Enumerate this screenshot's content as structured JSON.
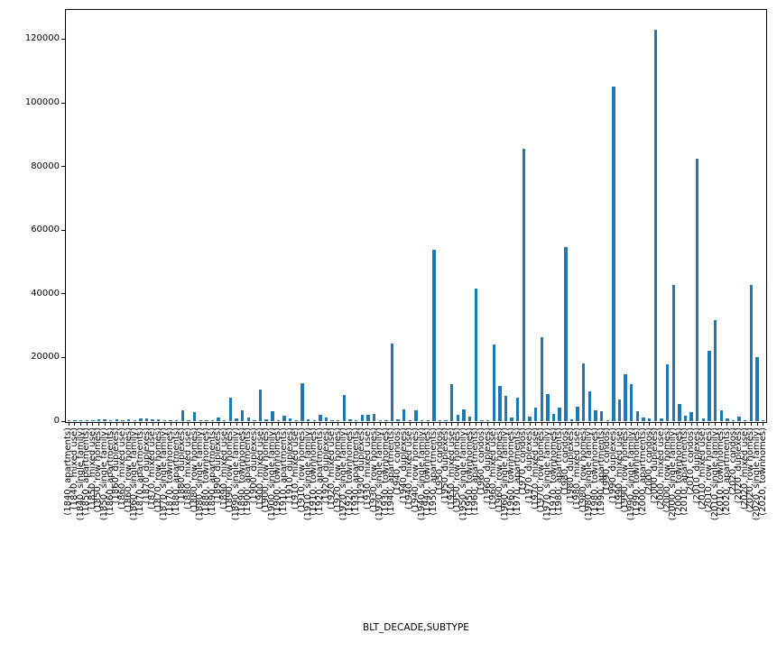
{
  "figure": {
    "background": "#ffffff",
    "axis_color": "#000000",
    "bar_color": "#1f77b4"
  },
  "chart_data": {
    "type": "bar",
    "title": "",
    "xlabel": "BLT_DECADE,SUBTYPE",
    "ylabel": "",
    "ylim": [
      0,
      129300
    ],
    "y_ticks": [
      0,
      20000,
      40000,
      60000,
      80000,
      100000,
      120000
    ],
    "grid": false,
    "legend": "none",
    "categories": [
      "(1840, apartments)",
      "(1840, mixed use)",
      "(1840, single family)",
      "(1850, apartments)",
      "(1850, mixed use)",
      "(1850, row homes)",
      "(1850, single family)",
      "(1860, apartments)",
      "(1860, duplexes)",
      "(1860, mixed use)",
      "(1860, row homes)",
      "(1860, single family)",
      "(1870, apartments)",
      "(1870, duplexes)",
      "(1870, mixed use)",
      "(1870, row homes)",
      "(1870, single family)",
      "(1870, townhomes)",
      "(1880, apartments)",
      "(1880, duplexes)",
      "(1880, mixed use)",
      "(1880, row homes)",
      "(1880, single family)",
      "(1880, townhomes)",
      "(1890, apartments)",
      "(1890, duplexes)",
      "(1890, mixed use)",
      "(1890, row homes)",
      "(1890, single family)",
      "(1890, townhomes)",
      "(1900, apartments)",
      "(1900, duplexes)",
      "(1900, mixed use)",
      "(1900, row homes)",
      "(1900, single family)",
      "(1900, townhomes)",
      "(1910, apartments)",
      "(1910, duplexes)",
      "(1910, mixed use)",
      "(1910, row homes)",
      "(1910, single family)",
      "(1910, townhomes)",
      "(1920, apartments)",
      "(1920, duplexes)",
      "(1920, mixed use)",
      "(1920, row homes)",
      "(1920, single family)",
      "(1920, townhomes)",
      "(1930, apartments)",
      "(1930, duplexes)",
      "(1930, mixed use)",
      "(1930, row homes)",
      "(1930, single family)",
      "(1930, townhomes)",
      "(1940, apartments)",
      "(1940, condos)",
      "(1940, duplexes)",
      "(1940, mixed use)",
      "(1940, row homes)",
      "(1940, single family)",
      "(1940, townhomes)",
      "(1950, apartments)",
      "(1950, condos)",
      "(1950, duplexes)",
      "(1950, mixed use)",
      "(1950, row homes)",
      "(1950, single family)",
      "(1950, townhomes)",
      "(1960, apartments)",
      "(1960, condos)",
      "(1960, duplexes)",
      "(1960, mixed use)",
      "(1960, row homes)",
      "(1960, single family)",
      "(1960, townhomes)",
      "(1970, apartments)",
      "(1970, condos)",
      "(1970, duplexes)",
      "(1970, mixed use)",
      "(1970, row homes)",
      "(1970, single family)",
      "(1970, townhomes)",
      "(1980, apartments)",
      "(1980, condos)",
      "(1980, duplexes)",
      "(1980, mixed use)",
      "(1980, row homes)",
      "(1980, single family)",
      "(1980, townhomes)",
      "(1990, apartments)",
      "(1990, condos)",
      "(1990, duplexes)",
      "(1990, mixed use)",
      "(1990, row homes)",
      "(1990, single family)",
      "(1990, townhomes)",
      "(2000, apartments)",
      "(2000, condos)",
      "(2000, duplexes)",
      "(2000, mixed use)",
      "(2000, row homes)",
      "(2000, single family)",
      "(2000, townhomes)",
      "(2010, apartments)",
      "(2010, condos)",
      "(2010, duplexes)",
      "(2010, mixed use)",
      "(2010, row homes)",
      "(2010, single family)",
      "(2010, townhomes)",
      "(2020, apartments)",
      "(2020, condos)",
      "(2020, duplexes)",
      "(2020, mixed use)",
      "(2020, row homes)",
      "(2020, single family)",
      "(2020, townhomes)"
    ],
    "values": [
      150,
      60,
      40,
      90,
      70,
      480,
      570,
      120,
      480,
      150,
      480,
      120,
      950,
      860,
      670,
      480,
      150,
      100,
      120,
      3340,
      200,
      2860,
      150,
      100,
      120,
      1150,
      200,
      7440,
      760,
      3340,
      1100,
      150,
      10000,
      500,
      3000,
      200,
      1600,
      800,
      380,
      12000,
      570,
      150,
      2100,
      1150,
      200,
      150,
      8100,
      480,
      120,
      1900,
      2100,
      2400,
      150,
      380,
      24500,
      600,
      3800,
      150,
      3350,
      200,
      120,
      53800,
      300,
      150,
      11700,
      2100,
      3800,
      1400,
      41600,
      300,
      150,
      24000,
      11000,
      7800,
      1100,
      7400,
      85600,
      1400,
      4300,
      26400,
      8400,
      2400,
      4300,
      54800,
      480,
      4600,
      18100,
      9400,
      3300,
      3100,
      200,
      105000,
      6700,
      14800,
      11500,
      3100,
      1100,
      760,
      123000,
      950,
      17800,
      42700,
      5250,
      1700,
      2700,
      82500,
      950,
      22100,
      31600,
      3300,
      950,
      150,
      1400,
      100,
      42900,
      20200,
      120
    ]
  }
}
